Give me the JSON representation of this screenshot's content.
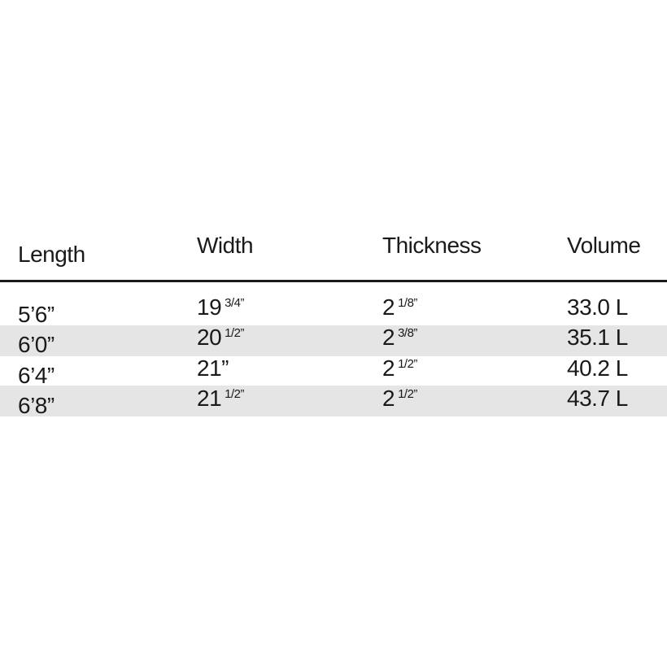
{
  "table": {
    "headers": [
      "Length",
      "Width",
      "Thickness",
      "Volume"
    ],
    "rows": [
      {
        "length": "5’6”",
        "width_whole": "19",
        "width_frac": "3/4”",
        "thick_whole": "2",
        "thick_frac": "1/8”",
        "volume": "33.0 L"
      },
      {
        "length": "6’0”",
        "width_whole": "20",
        "width_frac": "1/2”",
        "thick_whole": "2",
        "thick_frac": "3/8”",
        "volume": "35.1 L"
      },
      {
        "length": "6’4”",
        "width_whole": "21”",
        "width_frac": "",
        "thick_whole": "2",
        "thick_frac": "1/2”",
        "volume": "40.2 L"
      },
      {
        "length": "6’8”",
        "width_whole": "21",
        "width_frac": "1/2”",
        "thick_whole": "2",
        "thick_frac": "1/2”",
        "volume": "43.7 L"
      }
    ],
    "stripe_color": "#e5e5e5"
  }
}
